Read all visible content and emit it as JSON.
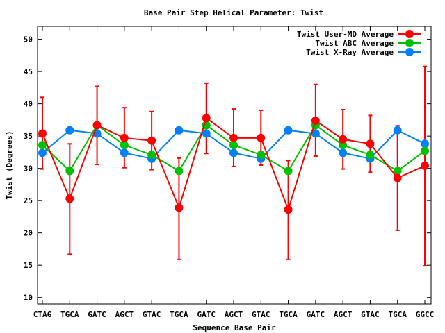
{
  "chart_data": {
    "type": "line",
    "title": "Base Pair Step Helical Parameter: Twist",
    "xlabel": "Sequence Base Pair",
    "ylabel": "Twist (Degrees)",
    "ylim": [
      9,
      52
    ],
    "yticks": [
      10,
      15,
      20,
      25,
      30,
      35,
      40,
      45,
      50
    ],
    "categories": [
      "CTAG",
      "TGCA",
      "GATC",
      "AGCT",
      "GTAC",
      "TGCA",
      "GATC",
      "AGCT",
      "GTAC",
      "TGCA",
      "GATC",
      "AGCT",
      "GTAC",
      "TGCA",
      "GGCC"
    ],
    "legend_position": "top-right",
    "grid": false,
    "series": [
      {
        "name": "Twist User-MD Average",
        "color": "#ff0000",
        "values": [
          35.4,
          25.3,
          36.7,
          34.7,
          34.3,
          23.9,
          37.8,
          34.7,
          34.7,
          23.6,
          37.4,
          34.5,
          33.8,
          28.5,
          30.4
        ],
        "error_low": [
          29.9,
          16.7,
          30.6,
          30.1,
          29.8,
          15.9,
          32.3,
          30.3,
          30.5,
          15.9,
          31.9,
          29.9,
          29.4,
          20.4,
          14.9
        ],
        "error_high": [
          41.0,
          33.8,
          42.7,
          39.4,
          38.8,
          31.6,
          43.2,
          39.2,
          39.0,
          31.2,
          43.0,
          39.1,
          38.2,
          36.6,
          45.8
        ]
      },
      {
        "name": "Twist ABC Average",
        "color": "#00c000",
        "values": [
          33.6,
          29.6,
          36.7,
          33.6,
          32.1,
          29.6,
          36.7,
          33.6,
          32.1,
          29.6,
          36.7,
          33.6,
          32.1,
          29.6,
          32.7
        ]
      },
      {
        "name": "Twist X-Ray Average",
        "color": "#0080ff",
        "values": [
          32.4,
          35.9,
          35.4,
          32.4,
          31.5,
          35.9,
          35.4,
          32.4,
          31.5,
          35.9,
          35.4,
          32.4,
          31.5,
          35.9,
          33.8
        ]
      }
    ]
  }
}
